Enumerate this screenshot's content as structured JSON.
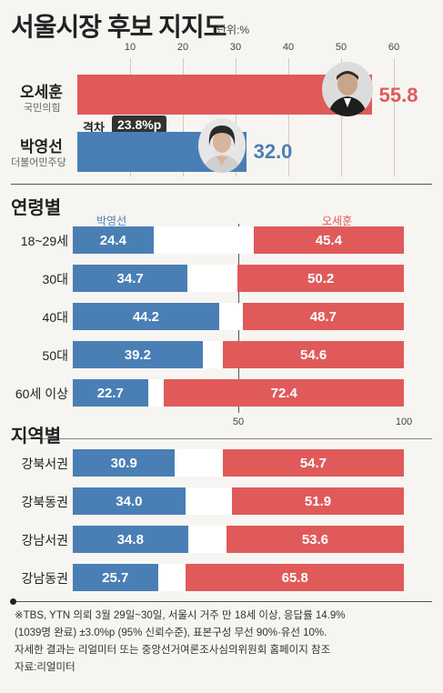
{
  "header": {
    "title": "서울시장 후보 지지도",
    "unit": "단위:%",
    "ticks": [
      "10",
      "20",
      "30",
      "40",
      "50",
      "60"
    ]
  },
  "candidates": [
    {
      "name": "오세훈",
      "party": "국민의힘",
      "value": 55.8,
      "value_label": "55.8",
      "color": "#e05a5a",
      "photo_icon": "person-photo-icon"
    },
    {
      "name": "박영선",
      "party": "더불어민주당",
      "value": 32.0,
      "value_label": "32.0",
      "color": "#4a7fb5",
      "photo_icon": "person-photo-icon"
    }
  ],
  "gap": {
    "label": "격차",
    "value": "23.8%p"
  },
  "age_section": {
    "title": "연령별",
    "legend_left": "박영선",
    "legend_right": "오세훈",
    "rows": [
      {
        "label": "18~29세",
        "park": 24.4,
        "park_label": "24.4",
        "oh": 45.4,
        "oh_label": "45.4"
      },
      {
        "label": "30대",
        "park": 34.7,
        "park_label": "34.7",
        "oh": 50.2,
        "oh_label": "50.2"
      },
      {
        "label": "40대",
        "park": 44.2,
        "park_label": "44.2",
        "oh": 48.7,
        "oh_label": "48.7"
      },
      {
        "label": "50대",
        "park": 39.2,
        "park_label": "39.2",
        "oh": 54.6,
        "oh_label": "54.6"
      },
      {
        "label": "60세 이상",
        "park": 22.7,
        "park_label": "22.7",
        "oh": 72.4,
        "oh_label": "72.4"
      }
    ],
    "axis_ticks": [
      "50",
      "100"
    ]
  },
  "region_section": {
    "title": "지역별",
    "rows": [
      {
        "label": "강북서권",
        "park": 30.9,
        "park_label": "30.9",
        "oh": 54.7,
        "oh_label": "54.7"
      },
      {
        "label": "강북동권",
        "park": 34.0,
        "park_label": "34.0",
        "oh": 51.9,
        "oh_label": "51.9"
      },
      {
        "label": "강남서권",
        "park": 34.8,
        "park_label": "34.8",
        "oh": 53.6,
        "oh_label": "53.6"
      },
      {
        "label": "강남동권",
        "park": 25.7,
        "park_label": "25.7",
        "oh": 65.8,
        "oh_label": "65.8"
      }
    ]
  },
  "footnote": {
    "line1": "※TBS, YTN 의뢰 3월 29일~30일, 서울시 거주 만 18세 이상, 응답률 14.9%",
    "line2": "(1039명 완료) ±3.0%p (95% 신뢰수준), 표본구성 무선 90%·유선 10%.",
    "line3": "자세한 결과는 리얼미터 또는 중앙선거여론조사심의위원회 홈페이지 참조",
    "source": "자료:리얼미터"
  },
  "colors": {
    "park_blue": "#4a7fb5",
    "oh_red": "#e05a5a",
    "background": "#f7f5f2"
  },
  "chart_data": [
    {
      "type": "bar",
      "title": "서울시장 후보 지지도",
      "unit": "%",
      "categories": [
        "오세훈",
        "박영선"
      ],
      "values": [
        55.8,
        32.0
      ],
      "xlim": [
        0,
        60
      ]
    },
    {
      "type": "bar",
      "title": "연령별",
      "categories": [
        "18~29세",
        "30대",
        "40대",
        "50대",
        "60세 이상"
      ],
      "series": [
        {
          "name": "박영선",
          "values": [
            24.4,
            34.7,
            44.2,
            39.2,
            22.7
          ]
        },
        {
          "name": "오세훈",
          "values": [
            45.4,
            50.2,
            48.7,
            54.6,
            72.4
          ]
        }
      ],
      "xlim": [
        0,
        100
      ]
    },
    {
      "type": "bar",
      "title": "지역별",
      "categories": [
        "강북서권",
        "강북동권",
        "강남서권",
        "강남동권"
      ],
      "series": [
        {
          "name": "박영선",
          "values": [
            30.9,
            34.0,
            34.8,
            25.7
          ]
        },
        {
          "name": "오세훈",
          "values": [
            54.7,
            51.9,
            53.6,
            65.8
          ]
        }
      ],
      "xlim": [
        0,
        100
      ]
    }
  ]
}
